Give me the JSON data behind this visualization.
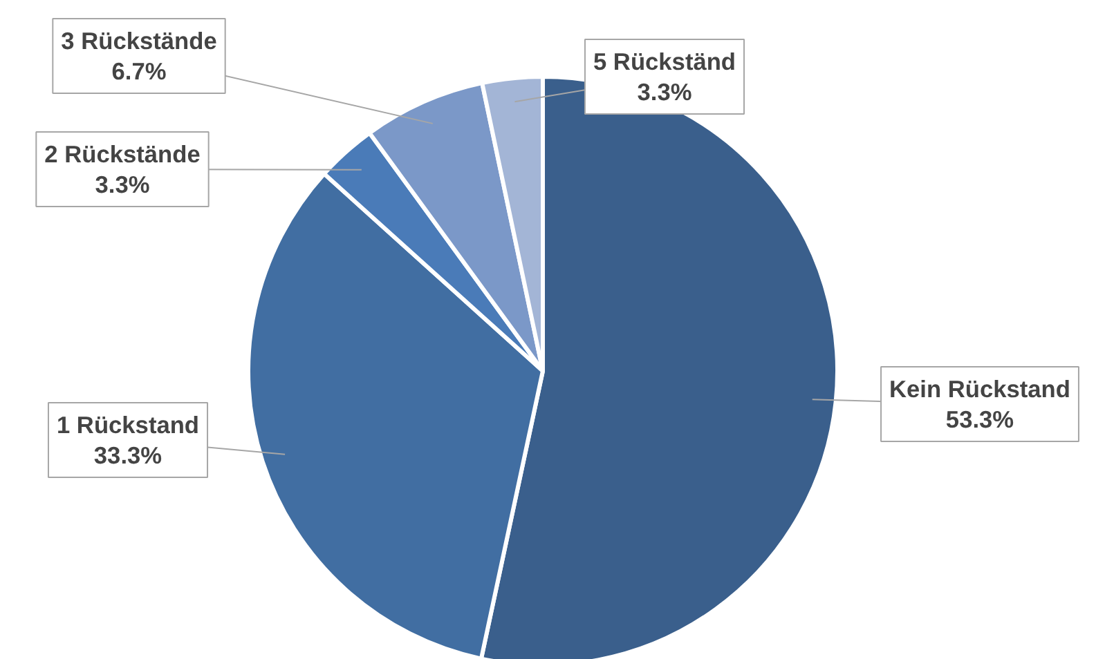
{
  "chart_data": {
    "type": "pie",
    "categories": [
      "Kein Rückstand",
      "1 Rückstand",
      "2 Rückstände",
      "3 Rückstände",
      "5 Rückständ"
    ],
    "values": [
      53.3,
      33.3,
      3.3,
      6.7,
      3.3
    ],
    "colors": [
      "#3a5f8c",
      "#416ea2",
      "#4a7bb8",
      "#7b98c8",
      "#a3b5d6"
    ],
    "value_labels": [
      "53.3%",
      "33.3%",
      "3.3%",
      "6.7%",
      "3.3%"
    ]
  }
}
